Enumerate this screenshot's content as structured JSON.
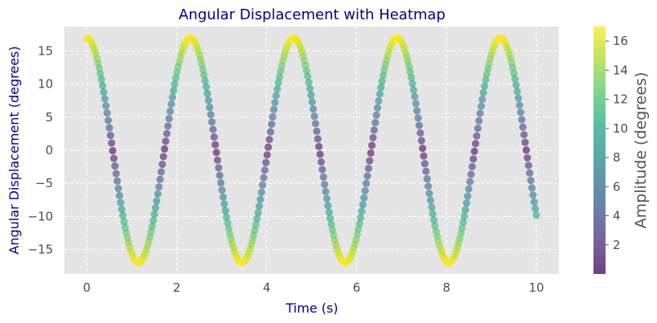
{
  "chart_data": {
    "type": "scatter",
    "title": "Angular Displacement with Heatmap",
    "xlabel": "Time (s)",
    "ylabel": "Angular Displacement (degrees)",
    "xlim": [
      -0.5,
      10.5
    ],
    "ylim": [
      -18.7,
      18.7
    ],
    "x_ticks": [
      0,
      2,
      4,
      6,
      8,
      10
    ],
    "x_tick_labels": [
      "0",
      "2",
      "4",
      "6",
      "8",
      "10"
    ],
    "y_ticks": [
      15,
      10,
      5,
      0,
      -5,
      -10,
      -15
    ],
    "y_tick_labels": [
      "15",
      "10",
      "5",
      "0",
      "−5",
      "−10",
      "−15"
    ],
    "grid": true,
    "series": [
      {
        "curve": "A*cos(2*pi*t/T)",
        "amplitude": 17,
        "period": 2.3,
        "t_start": 0,
        "t_end": 10,
        "points": 400,
        "color_by": "abs(value)",
        "colormap": "viridis"
      }
    ],
    "colorbar": {
      "label": "Amplitude (degrees)",
      "range": [
        0,
        17
      ],
      "ticks": [
        2,
        4,
        6,
        8,
        10,
        12,
        14,
        16
      ],
      "tick_labels": [
        "2",
        "4",
        "6",
        "8",
        "10",
        "12",
        "14",
        "16"
      ],
      "colormap": "viridis"
    },
    "colors": {
      "plot_background": "#e5e5e5",
      "grid": "#ffffff",
      "title": "#00008b",
      "axis_label": "#00008b",
      "tick_label": "#4d4d4d"
    }
  }
}
